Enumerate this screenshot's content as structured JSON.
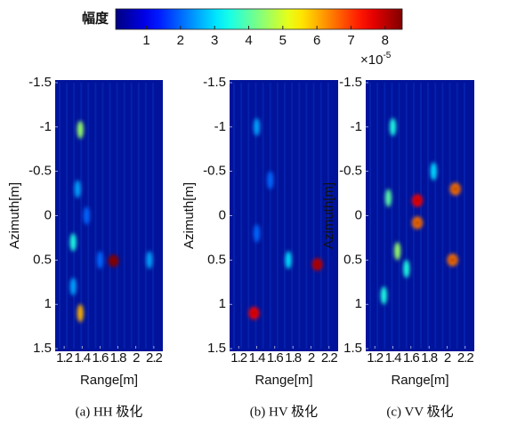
{
  "chart_data": [
    {
      "type": "colorbar",
      "title": "幅度",
      "colormap": "jet",
      "clim": [
        0.1,
        8.5
      ],
      "ticks": [
        1,
        2,
        3,
        4,
        5,
        6,
        7,
        8
      ],
      "scale_label": {
        "base": "×10",
        "exponent": "-5"
      }
    },
    {
      "type": "heatmap",
      "caption": "(a) HH 极化",
      "xlabel": "Range[m]",
      "ylabel": "Azimuth[m]",
      "xlim": [
        1.1,
        2.3
      ],
      "ylim": [
        -1.5,
        1.5
      ],
      "y_inverted": true,
      "xticks": [
        1.2,
        1.4,
        1.6,
        1.8,
        2,
        2.2
      ],
      "yticks": [
        -1.5,
        -1,
        -0.5,
        0,
        0.5,
        1,
        1.5
      ],
      "x": [
        1.75,
        1.38,
        1.38,
        1.3,
        1.35,
        1.3,
        2.15,
        1.6,
        1.45
      ],
      "y": [
        0.51,
        1.1,
        -0.97,
        0.3,
        -0.3,
        0.8,
        0.5,
        0.5,
        0.0
      ],
      "values": [
        8.5,
        6,
        4.5,
        3.5,
        2.5,
        2.5,
        2.5,
        2,
        2
      ]
    },
    {
      "type": "heatmap",
      "caption": "(b) HV 极化",
      "xlabel": "Range[m]",
      "ylabel": "Azimuth[m]",
      "xlim": [
        1.1,
        2.3
      ],
      "ylim": [
        -1.5,
        1.5
      ],
      "y_inverted": true,
      "xticks": [
        1.2,
        1.4,
        1.6,
        1.8,
        2,
        2.2
      ],
      "yticks": [
        -1.5,
        -1,
        -0.5,
        0,
        0.5,
        1,
        1.5
      ],
      "x": [
        2.07,
        1.37,
        1.75,
        1.4,
        1.55,
        1.4
      ],
      "y": [
        0.55,
        1.1,
        0.5,
        -1.0,
        -0.4,
        0.2
      ],
      "values": [
        8,
        7.5,
        3,
        2.5,
        2,
        2
      ]
    },
    {
      "type": "heatmap",
      "caption": "(c) VV 极化",
      "xlabel": "Range[m]",
      "ylabel": "Azimuth[m]",
      "xlim": [
        1.1,
        2.3
      ],
      "ylim": [
        -1.5,
        1.5
      ],
      "y_inverted": true,
      "xticks": [
        1.2,
        1.4,
        1.6,
        1.8,
        2,
        2.2
      ],
      "yticks": [
        -1.5,
        -1,
        -0.5,
        0,
        0.5,
        1,
        1.5
      ],
      "x": [
        2.09,
        1.67,
        1.67,
        2.06,
        1.45,
        1.4,
        1.3,
        1.85,
        1.55,
        1.35
      ],
      "y": [
        -0.3,
        -0.17,
        0.08,
        0.5,
        0.4,
        -1.0,
        0.9,
        -0.5,
        0.6,
        -0.2
      ],
      "values": [
        6.5,
        7.5,
        6.5,
        6.5,
        4.5,
        3.5,
        3.5,
        3,
        3.5,
        4
      ]
    }
  ]
}
